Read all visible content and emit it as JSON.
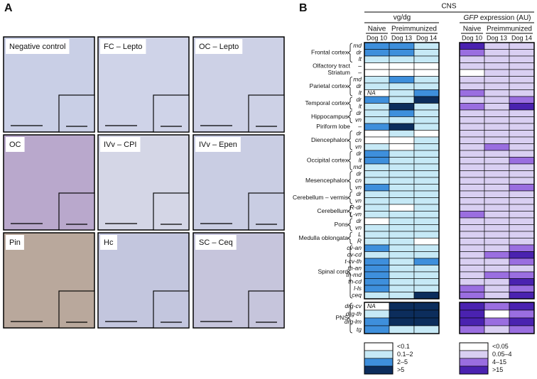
{
  "figure": {
    "panel_a": {
      "label": "A",
      "images": [
        "Negative control",
        "FC – Lepto",
        "OC – Lepto",
        "OC",
        "IVv – CPI",
        "IVv – Epen",
        "Pin",
        "Hc",
        "SC – Ceq"
      ]
    },
    "panel_b": {
      "label": "B",
      "header": "CNS",
      "group1": "vg/dg",
      "group2_italic": "GFP",
      "group2_rest": " expression (AU)",
      "subgroups": [
        "Naive",
        "Preimmunized"
      ],
      "dogs": [
        "Dog 10",
        "Dog 13",
        "Dog 14"
      ],
      "pns_label": "PNS",
      "regions": [
        {
          "name": "Frontal cortex",
          "rows": [
            {
              "sub": "md",
              "vg": [
                2,
                2,
                1
              ],
              "gfp": [
                3,
                1,
                1
              ]
            },
            {
              "sub": "dr",
              "vg": [
                2,
                2,
                1
              ],
              "gfp": [
                2,
                1,
                1
              ]
            },
            {
              "sub": "lt",
              "vg": [
                1,
                1,
                1
              ],
              "gfp": [
                1,
                1,
                1
              ]
            }
          ]
        },
        {
          "name": "Olfactory tract",
          "rows": [
            {
              "sub": "–",
              "vg": [
                0,
                0,
                0
              ],
              "gfp": [
                1,
                1,
                1
              ]
            }
          ]
        },
        {
          "name": "Striatum",
          "rows": [
            {
              "sub": "–",
              "vg": [
                0,
                0,
                0
              ],
              "gfp": [
                0,
                1,
                1
              ]
            }
          ]
        },
        {
          "name": "Parietal cortex",
          "rows": [
            {
              "sub": "md",
              "vg": [
                1,
                2,
                1
              ],
              "gfp": [
                1,
                1,
                1
              ]
            },
            {
              "sub": "dr",
              "vg": [
                1,
                1,
                1
              ],
              "gfp": [
                1,
                1,
                1
              ]
            },
            {
              "sub": "lt",
              "vg": [
                "NA",
                1,
                2
              ],
              "gfp": [
                2,
                1,
                1
              ]
            }
          ]
        },
        {
          "name": "Temporal cortex",
          "rows": [
            {
              "sub": "dr",
              "vg": [
                2,
                1,
                3
              ],
              "gfp": [
                1,
                1,
                2
              ]
            },
            {
              "sub": "lt",
              "vg": [
                1,
                3,
                1
              ],
              "gfp": [
                2,
                1,
                3
              ]
            }
          ]
        },
        {
          "name": "Hippocampus",
          "rows": [
            {
              "sub": "dr",
              "vg": [
                1,
                2,
                1
              ],
              "gfp": [
                1,
                1,
                1
              ]
            },
            {
              "sub": "vn",
              "vg": [
                1,
                1,
                1
              ],
              "gfp": [
                1,
                1,
                1
              ]
            }
          ]
        },
        {
          "name": "Piriform lobe",
          "rows": [
            {
              "sub": "–",
              "vg": [
                2,
                3,
                1
              ],
              "gfp": [
                1,
                1,
                1
              ]
            }
          ]
        },
        {
          "name": "Diencephalon",
          "rows": [
            {
              "sub": "dr",
              "vg": [
                0,
                1,
                0
              ],
              "gfp": [
                1,
                1,
                1
              ]
            },
            {
              "sub": "cn",
              "vg": [
                0,
                0,
                1
              ],
              "gfp": [
                1,
                1,
                1
              ]
            },
            {
              "sub": "vn",
              "vg": [
                1,
                0,
                1
              ],
              "gfp": [
                1,
                2,
                1
              ]
            }
          ]
        },
        {
          "name": "Occipital cortex",
          "rows": [
            {
              "sub": "dr",
              "vg": [
                2,
                1,
                1
              ],
              "gfp": [
                1,
                1,
                1
              ]
            },
            {
              "sub": "lt",
              "vg": [
                2,
                1,
                1
              ],
              "gfp": [
                1,
                1,
                2
              ]
            },
            {
              "sub": "md",
              "vg": [
                1,
                1,
                1
              ],
              "gfp": [
                1,
                1,
                1
              ]
            }
          ]
        },
        {
          "name": "Mesencephalon",
          "rows": [
            {
              "sub": "dr",
              "vg": [
                1,
                1,
                1
              ],
              "gfp": [
                1,
                1,
                1
              ]
            },
            {
              "sub": "cn",
              "vg": [
                1,
                1,
                1
              ],
              "gfp": [
                1,
                1,
                1
              ]
            },
            {
              "sub": "vn",
              "vg": [
                2,
                1,
                1
              ],
              "gfp": [
                1,
                1,
                2
              ]
            }
          ]
        },
        {
          "name": "Cerebellum – vermis",
          "rows": [
            {
              "sub": "dr",
              "vg": [
                1,
                1,
                1
              ],
              "gfp": [
                1,
                1,
                1
              ]
            },
            {
              "sub": "vn",
              "vg": [
                1,
                1,
                1
              ],
              "gfp": [
                1,
                1,
                1
              ]
            }
          ]
        },
        {
          "name": "Cerebellum",
          "rows": [
            {
              "sub": "R-dr",
              "vg": [
                1,
                0,
                1
              ],
              "gfp": [
                1,
                1,
                1
              ]
            },
            {
              "sub": "L-vn",
              "vg": [
                1,
                1,
                1
              ],
              "gfp": [
                2,
                1,
                1
              ]
            }
          ]
        },
        {
          "name": "Pons",
          "rows": [
            {
              "sub": "dr",
              "vg": [
                0,
                1,
                1
              ],
              "gfp": [
                1,
                1,
                1
              ]
            },
            {
              "sub": "vn",
              "vg": [
                1,
                1,
                1
              ],
              "gfp": [
                1,
                1,
                1
              ]
            }
          ]
        },
        {
          "name": "Medulla oblongata",
          "rows": [
            {
              "sub": "L",
              "vg": [
                1,
                1,
                1
              ],
              "gfp": [
                1,
                1,
                1
              ]
            },
            {
              "sub": "R",
              "vg": [
                1,
                1,
                0
              ],
              "gfp": [
                1,
                1,
                1
              ]
            }
          ]
        },
        {
          "name": "Spinal cord",
          "rows": [
            {
              "sub": "cv-an",
              "vg": [
                2,
                1,
                1
              ],
              "gfp": [
                1,
                1,
                2
              ]
            },
            {
              "sub": "cv-cd",
              "vg": [
                1,
                1,
                1
              ],
              "gfp": [
                1,
                2,
                3
              ]
            },
            {
              "sub": "t-cv-th",
              "vg": [
                2,
                1,
                2
              ],
              "gfp": [
                1,
                1,
                2
              ]
            },
            {
              "sub": "th-an",
              "vg": [
                2,
                1,
                1
              ],
              "gfp": [
                1,
                1,
                1
              ]
            },
            {
              "sub": "th-md",
              "vg": [
                2,
                1,
                1
              ],
              "gfp": [
                1,
                2,
                2
              ]
            },
            {
              "sub": "th-cd",
              "vg": [
                2,
                1,
                1
              ],
              "gfp": [
                1,
                1,
                3
              ]
            },
            {
              "sub": "l-ls",
              "vg": [
                2,
                1,
                1
              ],
              "gfp": [
                2,
                1,
                2
              ]
            },
            {
              "sub": "ceq",
              "vg": [
                1,
                1,
                3
              ],
              "gfp": [
                2,
                1,
                3
              ]
            }
          ]
        }
      ],
      "pns": [
        {
          "sub": "drg-cv",
          "vg": [
            "NA",
            3,
            3
          ],
          "gfp": [
            3,
            2,
            3
          ]
        },
        {
          "sub": "drg-th",
          "vg": [
            1,
            3,
            3
          ],
          "gfp": [
            3,
            0,
            2
          ]
        },
        {
          "sub": "drg-lm",
          "vg": [
            2,
            3,
            3
          ],
          "gfp": [
            3,
            2,
            3
          ]
        },
        {
          "sub": "tg",
          "vg": [
            2,
            1,
            1
          ],
          "gfp": [
            2,
            1,
            2
          ]
        }
      ],
      "legend_vg": [
        {
          "label": "<0.1",
          "color": "#ffffff"
        },
        {
          "label": "0.1–2",
          "color": "#c6e9f6"
        },
        {
          "label": "2–5",
          "color": "#3e8fdc"
        },
        {
          "label": ">5",
          "color": "#0c2d5c"
        }
      ],
      "legend_gfp": [
        {
          "label": "<0.05",
          "color": "#ffffff"
        },
        {
          "label": "0.05–4",
          "color": "#d9cff2"
        },
        {
          "label": "4–15",
          "color": "#9a6ee0"
        },
        {
          "label": ">15",
          "color": "#4a22b0"
        }
      ]
    }
  }
}
